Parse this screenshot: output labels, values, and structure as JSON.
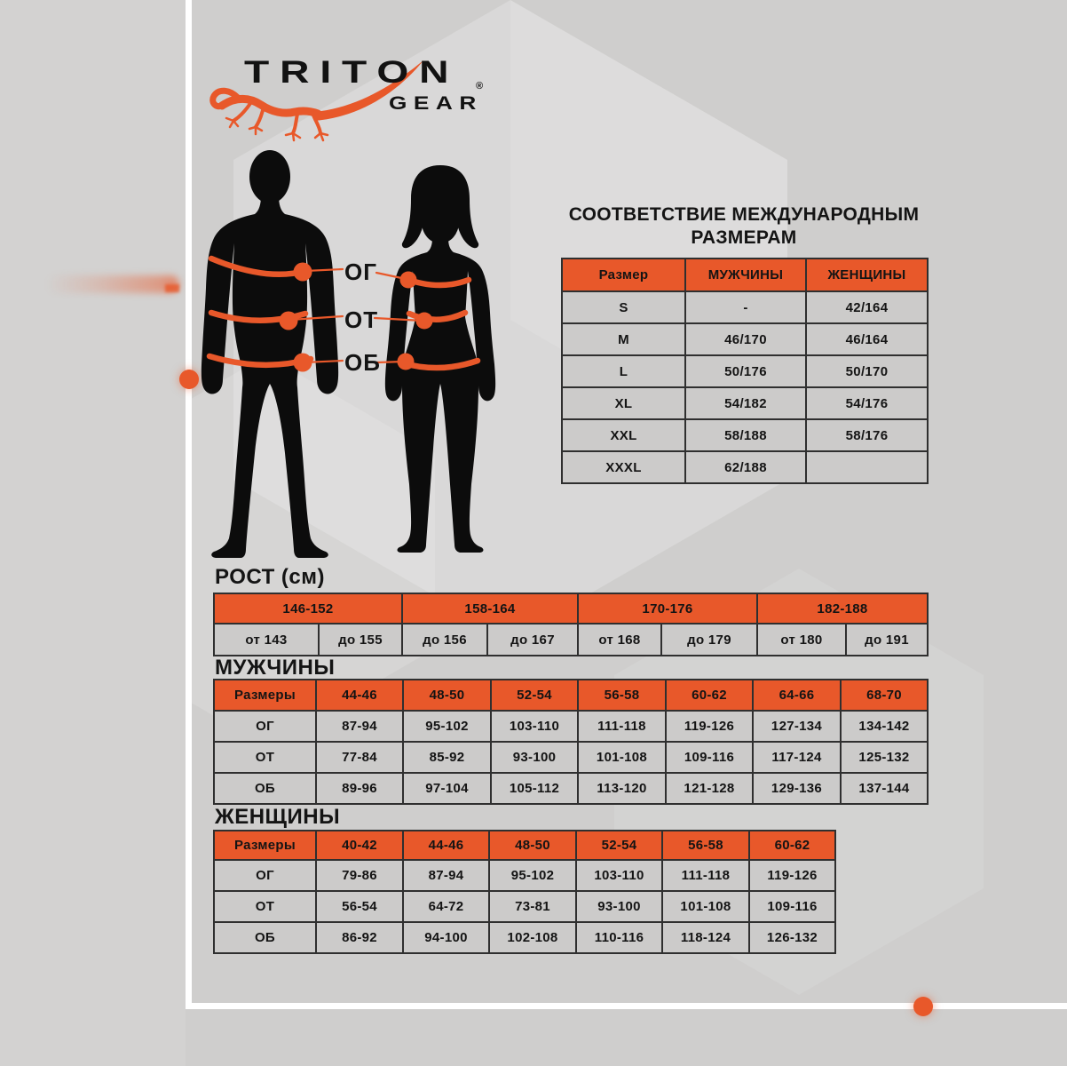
{
  "brand": {
    "name": "TRITON",
    "gear": "GEAR",
    "registered": "®"
  },
  "measurements": {
    "chest": "ОГ",
    "waist": "ОТ",
    "hips": "ОБ"
  },
  "intl": {
    "title_line1": "СООТВЕТСТВИЕ МЕЖДУНАРОДНЫМ",
    "title_line2": "РАЗМЕРАМ"
  },
  "intl_table": {
    "header": [
      "Размер",
      "МУЖЧИНЫ",
      "ЖЕНЩИНЫ"
    ],
    "rows": [
      [
        "S",
        "-",
        "42/164"
      ],
      [
        "M",
        "46/170",
        "46/164"
      ],
      [
        "L",
        "50/176",
        "50/170"
      ],
      [
        "XL",
        "54/182",
        "54/176"
      ],
      [
        "XXL",
        "58/188",
        "58/176"
      ],
      [
        "XXXL",
        "62/188",
        ""
      ]
    ]
  },
  "sections": {
    "height": "РОСТ (см)",
    "men": "МУЖЧИНЫ",
    "women": "ЖЕНЩИНЫ"
  },
  "height_table": {
    "groups": [
      "146-152",
      "158-164",
      "170-176",
      "182-188"
    ],
    "cells": [
      "от 143",
      "до 155",
      "до 156",
      "до 167",
      "от 168",
      "до 179",
      "от 180",
      "до 191"
    ]
  },
  "men_table": {
    "header": [
      "Размеры",
      "44-46",
      "48-50",
      "52-54",
      "56-58",
      "60-62",
      "64-66",
      "68-70"
    ],
    "rows": [
      [
        "ОГ",
        "87-94",
        "95-102",
        "103-110",
        "111-118",
        "119-126",
        "127-134",
        "134-142"
      ],
      [
        "ОТ",
        "77-84",
        "85-92",
        "93-100",
        "101-108",
        "109-116",
        "117-124",
        "125-132"
      ],
      [
        "ОБ",
        "89-96",
        "97-104",
        "105-112",
        "113-120",
        "121-128",
        "129-136",
        "137-144"
      ]
    ]
  },
  "women_table": {
    "header": [
      "Размеры",
      "40-42",
      "44-46",
      "48-50",
      "52-54",
      "56-58",
      "60-62"
    ],
    "rows": [
      [
        "ОГ",
        "79-86",
        "87-94",
        "95-102",
        "103-110",
        "111-118",
        "119-126"
      ],
      [
        "ОТ",
        "56-54",
        "64-72",
        "73-81",
        "93-100",
        "101-108",
        "109-116"
      ],
      [
        "ОБ",
        "86-92",
        "94-100",
        "102-108",
        "110-116",
        "118-124",
        "126-132"
      ]
    ]
  },
  "colors": {
    "accent_orange": "#e8582a",
    "background_gray": "#cfcecd",
    "cell_gray": "#cccbca",
    "border_dark": "#2f2f2f",
    "text_black": "#141414",
    "frame_white": "#ffffff"
  }
}
